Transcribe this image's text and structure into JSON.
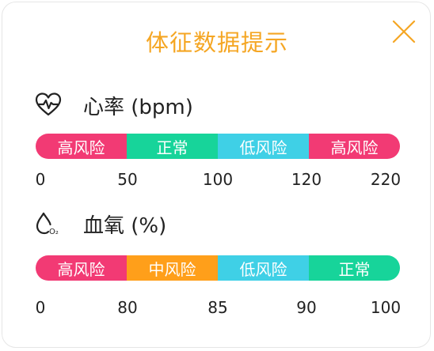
{
  "dialog": {
    "title": "体征数据提示"
  },
  "colors": {
    "high": "#f23a74",
    "medium": "#ff9f1a",
    "low": "#3fd0e6",
    "normal": "#17d49a"
  },
  "heart_rate": {
    "icon": "heart-pulse-icon",
    "label": "心率 (bpm)",
    "segments": [
      {
        "label": "高风险",
        "level": "high"
      },
      {
        "label": "正常",
        "level": "normal"
      },
      {
        "label": "低风险",
        "level": "low"
      },
      {
        "label": "高风险",
        "level": "high"
      }
    ],
    "ticks": [
      "0",
      "50",
      "100",
      "120",
      "220"
    ]
  },
  "blood_oxygen": {
    "icon": "oxygen-drop-icon",
    "label": "血氧 (%)",
    "segments": [
      {
        "label": "高风险",
        "level": "high"
      },
      {
        "label": "中风险",
        "level": "medium"
      },
      {
        "label": "低风险",
        "level": "low"
      },
      {
        "label": "正常",
        "level": "normal"
      }
    ],
    "ticks": [
      "0",
      "80",
      "85",
      "90",
      "100"
    ]
  }
}
